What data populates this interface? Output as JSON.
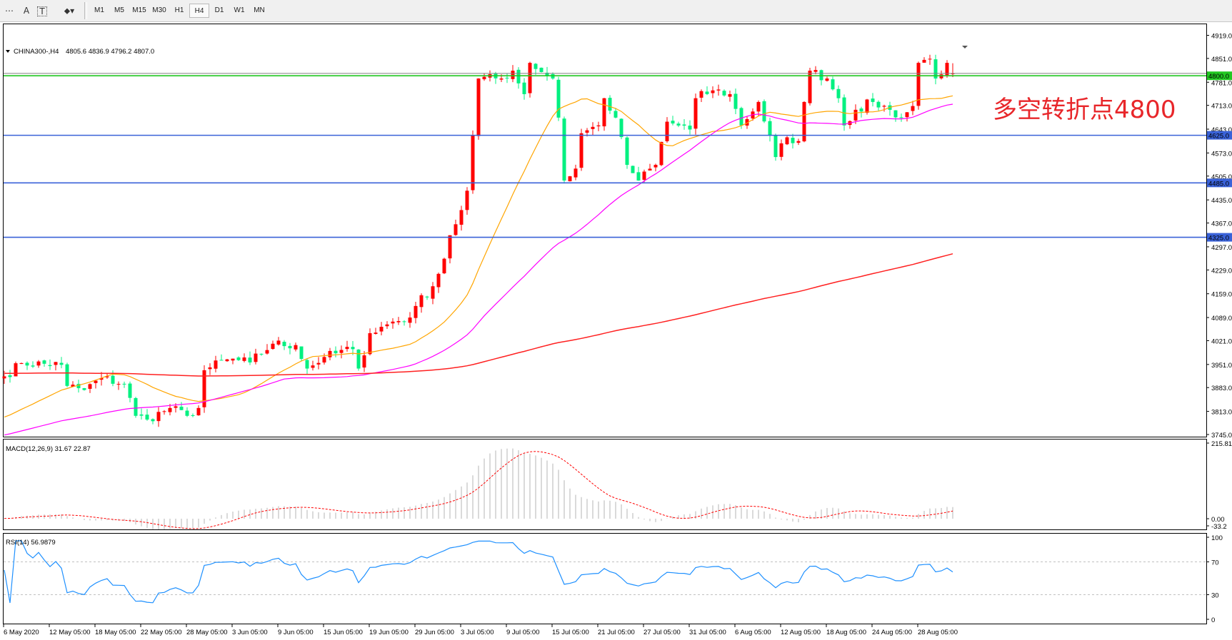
{
  "toolbar": {
    "tools": [
      {
        "name": "period-separator-icon",
        "glyph": "⋯"
      },
      {
        "name": "text-icon",
        "glyph": "A"
      },
      {
        "name": "text-label-icon",
        "glyph": "T"
      },
      {
        "name": "arrows-icon",
        "glyph": "⬥▾"
      }
    ],
    "timeframes": [
      "M1",
      "M5",
      "M15",
      "M30",
      "H1",
      "H4",
      "D1",
      "W1",
      "MN"
    ],
    "active_timeframe": "H4"
  },
  "header": {
    "symbol": "CHINA300-,H4",
    "ohlc": "4805.6 4836.9 4796.2 4807.0"
  },
  "annotation": "多空转折点4800",
  "price_axis": [
    "4919.0",
    "4851.0",
    "4781.0",
    "4713.0",
    "4643.0",
    "4573.0",
    "4505.0",
    "4435.0",
    "4367.0",
    "4297.0",
    "4229.0",
    "4159.0",
    "4089.0",
    "4021.0",
    "3951.0",
    "3883.0",
    "3813.0",
    "3745.0"
  ],
  "levels": [
    {
      "label": "4800.0",
      "value": 4800,
      "color": "#22c822"
    },
    {
      "label": "4625.0",
      "value": 4625,
      "color": "#3a62d8"
    },
    {
      "label": "4485.0",
      "value": 4485,
      "color": "#3a62d8"
    },
    {
      "label": "4325.0",
      "value": 4325,
      "color": "#3a62d8"
    }
  ],
  "macd": {
    "label": "MACD(12,26,9) 31.67 22.87",
    "axis": [
      "215.81",
      "0.00",
      "-33.2"
    ]
  },
  "rsi": {
    "label": "RSI(14) 56.9879",
    "axis": [
      "100",
      "70",
      "30",
      "0"
    ]
  },
  "time_axis": [
    "6 May 2020",
    "12 May 05:00",
    "18 May 05:00",
    "22 May 05:00",
    "28 May 05:00",
    "3 Jun 05:00",
    "9 Jun 05:00",
    "15 Jun 05:00",
    "19 Jun 05:00",
    "29 Jun 05:00",
    "3 Jul 05:00",
    "9 Jul 05:00",
    "15 Jul 05:00",
    "21 Jul 05:00",
    "27 Jul 05:00",
    "31 Jul 05:00",
    "6 Aug 05:00",
    "12 Aug 05:00",
    "18 Aug 05:00",
    "24 Aug 05:00",
    "28 Aug 05:00"
  ],
  "colors": {
    "bull": "#ff0000",
    "bear": "#00f080",
    "ma_fast": "#ffa500",
    "ma_mid": "#ff00ff",
    "ma_slow": "#ff2020",
    "macd_hist": "#c0c0c0",
    "macd_signal": "#ff0000",
    "rsi": "#1e90ff",
    "annotation": "#e8262a"
  },
  "chart_data": {
    "type": "candlestick",
    "price_range": [
      3745,
      4919
    ],
    "last_bar": {
      "open": 4805.6,
      "high": 4836.9,
      "low": 4796.2,
      "close": 4807.0
    },
    "price_path_bar_close": [
      [
        0,
        3916
      ],
      [
        3,
        3955
      ],
      [
        10,
        3950
      ],
      [
        11,
        3888
      ],
      [
        14,
        3876
      ],
      [
        17,
        3911
      ],
      [
        21,
        3893
      ],
      [
        23,
        3800
      ],
      [
        25,
        3789
      ],
      [
        29,
        3823
      ],
      [
        32,
        3800
      ],
      [
        34,
        3823
      ],
      [
        35,
        3934
      ],
      [
        39,
        3966
      ],
      [
        43,
        3957
      ],
      [
        47,
        4012
      ],
      [
        51,
        4008
      ],
      [
        53,
        3939
      ],
      [
        56,
        3973
      ],
      [
        61,
        3996
      ],
      [
        62,
        3939
      ],
      [
        64,
        4043
      ],
      [
        68,
        4077
      ],
      [
        71,
        4089
      ],
      [
        72,
        4123
      ],
      [
        75,
        4181
      ],
      [
        77,
        4262
      ],
      [
        78,
        4331
      ],
      [
        80,
        4405
      ],
      [
        81,
        4462
      ],
      [
        82,
        4626
      ],
      [
        83,
        4792
      ],
      [
        87,
        4792
      ],
      [
        89,
        4815
      ],
      [
        91,
        4746
      ],
      [
        92,
        4838
      ],
      [
        96,
        4792
      ],
      [
        97,
        4677
      ],
      [
        98,
        4492
      ],
      [
        100,
        4527
      ],
      [
        101,
        4631
      ],
      [
        104,
        4654
      ],
      [
        105,
        4734
      ],
      [
        107,
        4677
      ],
      [
        109,
        4538
      ],
      [
        111,
        4492
      ],
      [
        114,
        4538
      ],
      [
        116,
        4665
      ],
      [
        120,
        4642
      ],
      [
        121,
        4734
      ],
      [
        124,
        4757
      ],
      [
        127,
        4746
      ],
      [
        129,
        4654
      ],
      [
        132,
        4723
      ],
      [
        135,
        4561
      ],
      [
        137,
        4619
      ],
      [
        139,
        4608
      ],
      [
        140,
        4723
      ],
      [
        141,
        4815
      ],
      [
        144,
        4792
      ],
      [
        146,
        4734
      ],
      [
        147,
        4654
      ],
      [
        149,
        4700
      ],
      [
        152,
        4723
      ],
      [
        155,
        4700
      ],
      [
        157,
        4677
      ],
      [
        159,
        4711
      ],
      [
        160,
        4838
      ],
      [
        162,
        4850
      ],
      [
        163,
        4792
      ],
      [
        165,
        4838
      ],
      [
        166,
        4807
      ]
    ]
  }
}
